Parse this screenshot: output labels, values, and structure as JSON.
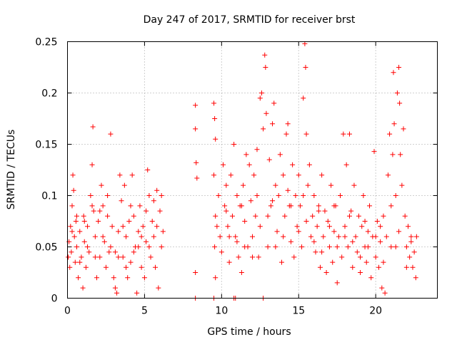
{
  "chart_data": {
    "type": "scatter",
    "title": "Day 247 of 2017, SRMTID for receiver brst",
    "xlabel": "GPS time / hours",
    "ylabel": "SRMTID / TECUs",
    "xlim": [
      0,
      24
    ],
    "ylim": [
      0,
      0.25
    ],
    "xticks": [
      0,
      5,
      10,
      15,
      20
    ],
    "xtick_labels": [
      "0",
      "5",
      "10",
      "15",
      "20"
    ],
    "yticks": [
      0,
      0.05,
      0.1,
      0.15,
      0.2,
      0.25
    ],
    "ytick_labels": [
      "0",
      "0.05",
      "0.1",
      "0.15",
      "0.2",
      "0.25"
    ],
    "grid": true,
    "marker": "plus",
    "color": "#ff0000",
    "series": [
      {
        "name": "",
        "points": [
          [
            0.05,
            0.04
          ],
          [
            0.1,
            0.055
          ],
          [
            0.15,
            0.03
          ],
          [
            0.2,
            0.07
          ],
          [
            0.25,
            0.045
          ],
          [
            0.3,
            0.09
          ],
          [
            0.35,
            0.12
          ],
          [
            0.4,
            0.105
          ],
          [
            0.45,
            0.06
          ],
          [
            0.5,
            0.035
          ],
          [
            0.55,
            0.075
          ],
          [
            0.6,
            0.05
          ],
          [
            0.7,
            0.02
          ],
          [
            0.8,
            0.065
          ],
          [
            0.9,
            0.04
          ],
          [
            1.0,
            0.01
          ],
          [
            1.05,
            0.08
          ],
          [
            1.1,
            0.055
          ],
          [
            1.2,
            0.03
          ],
          [
            1.3,
            0.07
          ],
          [
            1.4,
            0.045
          ],
          [
            1.5,
            0.1
          ],
          [
            1.6,
            0.13
          ],
          [
            1.65,
            0.167
          ],
          [
            1.7,
            0.085
          ],
          [
            1.8,
            0.06
          ],
          [
            1.9,
            0.02
          ],
          [
            2.0,
            0.075
          ],
          [
            2.1,
            0.04
          ],
          [
            2.2,
            0.11
          ],
          [
            2.3,
            0.09
          ],
          [
            2.4,
            0.055
          ],
          [
            2.5,
            0.03
          ],
          [
            2.6,
            0.08
          ],
          [
            2.7,
            0.045
          ],
          [
            2.8,
            0.16
          ],
          [
            2.9,
            0.07
          ],
          [
            3.0,
            0.02
          ],
          [
            3.1,
            0.01
          ],
          [
            3.2,
            0.005
          ],
          [
            3.3,
            0.065
          ],
          [
            3.4,
            0.12
          ],
          [
            3.5,
            0.095
          ],
          [
            3.6,
            0.04
          ],
          [
            3.7,
            0.11
          ],
          [
            3.8,
            0.06
          ],
          [
            3.9,
            0.02
          ],
          [
            4.0,
            0.075
          ],
          [
            4.1,
            0.035
          ],
          [
            4.2,
            0.12
          ],
          [
            4.3,
            0.08
          ],
          [
            4.4,
            0.05
          ],
          [
            4.5,
            0.005
          ],
          [
            4.6,
            0.065
          ],
          [
            4.7,
            0.09
          ],
          [
            4.8,
            0.03
          ],
          [
            4.9,
            0.07
          ],
          [
            5.0,
            0.02
          ],
          [
            5.1,
            0.055
          ],
          [
            5.2,
            0.125
          ],
          [
            5.3,
            0.1
          ],
          [
            5.4,
            0.04
          ],
          [
            5.5,
            0.075
          ],
          [
            5.6,
            0.06
          ],
          [
            5.7,
            0.03
          ],
          [
            5.8,
            0.105
          ],
          [
            5.9,
            0.01
          ],
          [
            6.0,
            0.085
          ],
          [
            6.1,
            0.05
          ],
          [
            6.2,
            0.065
          ],
          [
            0.3,
            0.065
          ],
          [
            0.8,
            0.035
          ],
          [
            1.3,
            0.05
          ],
          [
            1.8,
            0.04
          ],
          [
            2.3,
            0.06
          ],
          [
            2.8,
            0.05
          ],
          [
            3.3,
            0.04
          ],
          [
            3.8,
            0.03
          ],
          [
            4.3,
            0.045
          ],
          [
            4.8,
            0.06
          ],
          [
            5.3,
            0.05
          ],
          [
            5.8,
            0.07
          ],
          [
            0.6,
            0.08
          ],
          [
            1.1,
            0.075
          ],
          [
            1.6,
            0.09
          ],
          [
            2.1,
            0.085
          ],
          [
            2.6,
            0.1
          ],
          [
            3.1,
            0.045
          ],
          [
            3.6,
            0.07
          ],
          [
            4.1,
            0.09
          ],
          [
            4.6,
            0.05
          ],
          [
            5.1,
            0.085
          ],
          [
            5.6,
            0.095
          ],
          [
            6.1,
            0.1
          ],
          [
            8.3,
            0.188
          ],
          [
            8.3,
            0.165
          ],
          [
            8.35,
            0.132
          ],
          [
            8.4,
            0.117
          ],
          [
            8.3,
            0.025
          ],
          [
            9.5,
            0.19
          ],
          [
            9.55,
            0.175
          ],
          [
            9.6,
            0.155
          ],
          [
            9.5,
            0.12
          ],
          [
            9.6,
            0.08
          ],
          [
            9.55,
            0.05
          ],
          [
            9.6,
            0.02
          ],
          [
            9.7,
            0.07
          ],
          [
            9.8,
            0.1
          ],
          [
            9.9,
            0.06
          ],
          [
            10.0,
            0.045
          ],
          [
            10.1,
            0.13
          ],
          [
            10.2,
            0.09
          ],
          [
            10.3,
            0.11
          ],
          [
            10.4,
            0.07
          ],
          [
            10.5,
            0.035
          ],
          [
            10.6,
            0.12
          ],
          [
            10.7,
            0.08
          ],
          [
            10.8,
            0.15
          ],
          [
            10.9,
            0.06
          ],
          [
            11.0,
            0.1
          ],
          [
            11.1,
            0.04
          ],
          [
            11.2,
            0.09
          ],
          [
            11.3,
            0.025
          ],
          [
            11.4,
            0.11
          ],
          [
            11.5,
            0.075
          ],
          [
            11.6,
            0.14
          ],
          [
            11.7,
            0.05
          ],
          [
            11.8,
            0.13
          ],
          [
            11.9,
            0.095
          ],
          [
            12.0,
            0.06
          ],
          [
            12.1,
            0.12
          ],
          [
            12.2,
            0.08
          ],
          [
            12.3,
            0.145
          ],
          [
            12.4,
            0.04
          ],
          [
            12.5,
            0.195
          ],
          [
            12.6,
            0.2
          ],
          [
            12.7,
            0.165
          ],
          [
            12.8,
            0.237
          ],
          [
            12.85,
            0.225
          ],
          [
            12.9,
            0.18
          ],
          [
            13.0,
            0.05
          ],
          [
            13.1,
            0.135
          ],
          [
            13.2,
            0.09
          ],
          [
            13.3,
            0.17
          ],
          [
            13.4,
            0.19
          ],
          [
            13.5,
            0.11
          ],
          [
            13.6,
            0.065
          ],
          [
            13.7,
            0.1
          ],
          [
            13.8,
            0.14
          ],
          [
            13.9,
            0.035
          ],
          [
            14.0,
            0.12
          ],
          [
            14.1,
            0.08
          ],
          [
            14.2,
            0.16
          ],
          [
            14.3,
            0.17
          ],
          [
            14.4,
            0.09
          ],
          [
            14.5,
            0.055
          ],
          [
            14.6,
            0.13
          ],
          [
            14.7,
            0.04
          ],
          [
            14.8,
            0.1
          ],
          [
            14.9,
            0.07
          ],
          [
            15.0,
            0.12
          ],
          [
            15.1,
            0.09
          ],
          [
            15.2,
            0.05
          ],
          [
            15.3,
            0.195
          ],
          [
            15.4,
            0.248
          ],
          [
            15.45,
            0.225
          ],
          [
            15.5,
            0.16
          ],
          [
            15.6,
            0.11
          ],
          [
            15.7,
            0.13
          ],
          [
            15.8,
            0.06
          ],
          [
            15.9,
            0.08
          ],
          [
            16.0,
            0.1
          ],
          [
            16.1,
            0.045
          ],
          [
            16.2,
            0.07
          ],
          [
            16.3,
            0.09
          ],
          [
            16.4,
            0.03
          ],
          [
            16.5,
            0.12
          ],
          [
            16.6,
            0.06
          ],
          [
            16.7,
            0.085
          ],
          [
            16.8,
            0.025
          ],
          [
            16.9,
            0.075
          ],
          [
            17.0,
            0.05
          ],
          [
            17.1,
            0.11
          ],
          [
            17.2,
            0.035
          ],
          [
            17.3,
            0.065
          ],
          [
            17.4,
            0.09
          ],
          [
            17.5,
            0.015
          ],
          [
            17.6,
            0.06
          ],
          [
            17.7,
            0.1
          ],
          [
            17.8,
            0.04
          ],
          [
            17.9,
            0.16
          ],
          [
            18.0,
            0.07
          ],
          [
            18.1,
            0.13
          ],
          [
            18.2,
            0.05
          ],
          [
            18.3,
            0.16
          ],
          [
            18.4,
            0.085
          ],
          [
            18.5,
            0.03
          ],
          [
            18.6,
            0.11
          ],
          [
            18.7,
            0.06
          ],
          [
            18.8,
            0.045
          ],
          [
            18.9,
            0.08
          ],
          [
            19.0,
            0.025
          ],
          [
            19.1,
            0.07
          ],
          [
            19.2,
            0.1
          ],
          [
            19.3,
            0.05
          ],
          [
            19.4,
            0.035
          ],
          [
            19.5,
            0.065
          ],
          [
            19.6,
            0.09
          ],
          [
            19.7,
            0.02
          ],
          [
            19.8,
            0.06
          ],
          [
            19.9,
            0.143
          ],
          [
            20.0,
            0.04
          ],
          [
            20.1,
            0.075
          ],
          [
            20.2,
            0.03
          ],
          [
            20.3,
            0.055
          ],
          [
            20.4,
            0.01
          ],
          [
            20.5,
            0.08
          ],
          [
            20.6,
            0.005
          ],
          [
            20.7,
            0.06
          ],
          [
            20.8,
            0.12
          ],
          [
            20.9,
            0.16
          ],
          [
            21.0,
            0.09
          ],
          [
            21.1,
            0.14
          ],
          [
            21.15,
            0.22
          ],
          [
            21.2,
            0.17
          ],
          [
            21.3,
            0.05
          ],
          [
            21.4,
            0.2
          ],
          [
            21.5,
            0.225
          ],
          [
            21.55,
            0.19
          ],
          [
            21.6,
            0.14
          ],
          [
            21.7,
            0.11
          ],
          [
            21.8,
            0.165
          ],
          [
            21.9,
            0.08
          ],
          [
            22.0,
            0.05
          ],
          [
            22.1,
            0.07
          ],
          [
            22.2,
            0.04
          ],
          [
            22.3,
            0.055
          ],
          [
            22.4,
            0.03
          ],
          [
            22.5,
            0.045
          ],
          [
            22.6,
            0.02
          ],
          [
            22.65,
            0.06
          ],
          [
            10.5,
            0.06
          ],
          [
            11.0,
            0.055
          ],
          [
            11.5,
            0.05
          ],
          [
            12.0,
            0.04
          ],
          [
            12.5,
            0.07
          ],
          [
            13.0,
            0.08
          ],
          [
            13.5,
            0.05
          ],
          [
            14.0,
            0.06
          ],
          [
            14.5,
            0.09
          ],
          [
            15.0,
            0.065
          ],
          [
            15.5,
            0.075
          ],
          [
            16.0,
            0.055
          ],
          [
            16.5,
            0.045
          ],
          [
            17.0,
            0.07
          ],
          [
            17.5,
            0.05
          ],
          [
            18.0,
            0.06
          ],
          [
            18.5,
            0.055
          ],
          [
            19.0,
            0.04
          ],
          [
            19.5,
            0.05
          ],
          [
            20.0,
            0.06
          ],
          [
            20.5,
            0.035
          ],
          [
            21.0,
            0.05
          ],
          [
            21.5,
            0.065
          ],
          [
            22.0,
            0.03
          ],
          [
            10.3,
            0.085
          ],
          [
            11.3,
            0.09
          ],
          [
            12.3,
            0.1
          ],
          [
            13.3,
            0.095
          ],
          [
            14.3,
            0.105
          ],
          [
            15.3,
            0.1
          ],
          [
            16.3,
            0.085
          ],
          [
            17.3,
            0.09
          ],
          [
            18.3,
            0.08
          ],
          [
            19.3,
            0.075
          ],
          [
            20.3,
            0.07
          ],
          [
            21.3,
            0.1
          ],
          [
            22.3,
            0.06
          ],
          [
            8.3,
            0.0
          ],
          [
            9.5,
            0.0
          ],
          [
            10.8,
            0.0
          ],
          [
            10.9,
            0.0
          ],
          [
            12.7,
            0.0
          ]
        ]
      }
    ]
  }
}
